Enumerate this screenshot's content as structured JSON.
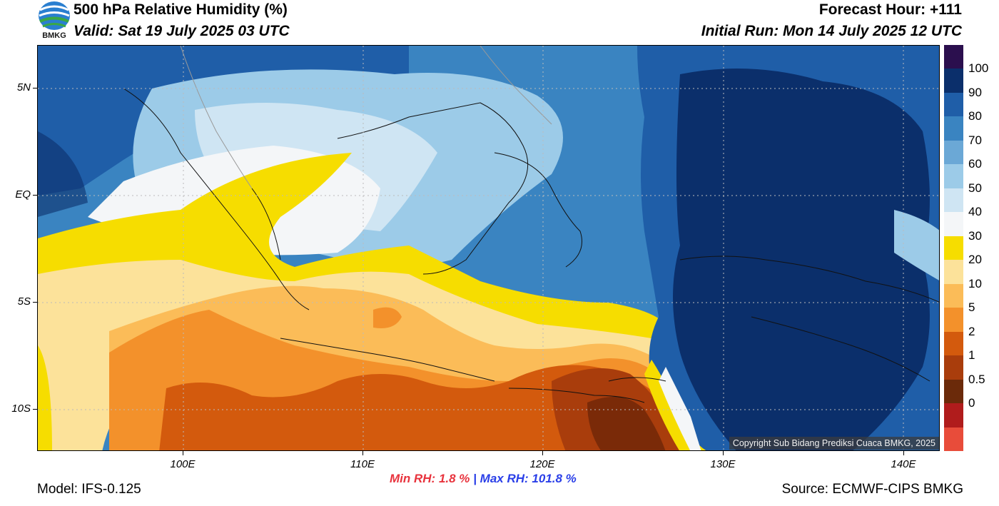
{
  "header": {
    "title": "500 hPa Relative Humidity (%)",
    "valid": "Valid: Sat 19 July 2025 03 UTC",
    "forecast_hour": "Forecast Hour: +111",
    "initial_run": "Initial Run: Mon 14 July 2025 12 UTC"
  },
  "logo": {
    "text": "BMKG",
    "icon": "bmkg-logo-icon"
  },
  "map": {
    "lat_labels": [
      "5N",
      "EQ",
      "5S",
      "10S"
    ],
    "lon_labels": [
      "100E",
      "110E",
      "120E",
      "130E",
      "140E"
    ],
    "copyright": "Copyright Sub Bidang Prediksi Cuaca BMKG, 2025",
    "gridlines": "dotted",
    "palette": {
      "sea_dark": "#0b2f6b",
      "blue_90": "#1f5ea8",
      "blue_80": "#3a84c1",
      "blue_70": "#6ba8d6",
      "blue_60": "#9ccbe8",
      "blue_50": "#cfe5f3",
      "white_40": "#f4f6f8",
      "yellow_30": "#f6dd00",
      "lightorange_20": "#fce29a",
      "orange_10": "#fbbc58",
      "orange_5": "#f3912b",
      "darkorange_2": "#d35a0d",
      "brown_1": "#a93d0c",
      "darkbrown_05": "#7a2a08"
    }
  },
  "colorbar": {
    "labels": [
      "100",
      "90",
      "80",
      "70",
      "60",
      "50",
      "40",
      "30",
      "20",
      "10",
      "5",
      "2",
      "1",
      "0.5",
      "0"
    ],
    "colors": [
      "#2b0f4e",
      "#0b2f6b",
      "#1f5ea8",
      "#3a84c1",
      "#6ba8d6",
      "#9ccbe8",
      "#cfe5f3",
      "#f4f6f8",
      "#f6dd00",
      "#fce29a",
      "#fbbc58",
      "#f3912b",
      "#d35a0d",
      "#a93d0c",
      "#6b2a0a",
      "#b01c1c",
      "#e84c3a"
    ]
  },
  "stats": {
    "min_label": "Min RH:",
    "min_value": "1.8 %",
    "separator": "|",
    "max_label": "Max RH:",
    "max_value": "101.8 %"
  },
  "footer": {
    "model": "Model: IFS-0.125",
    "source": "Source: ECMWF-CIPS BMKG"
  }
}
